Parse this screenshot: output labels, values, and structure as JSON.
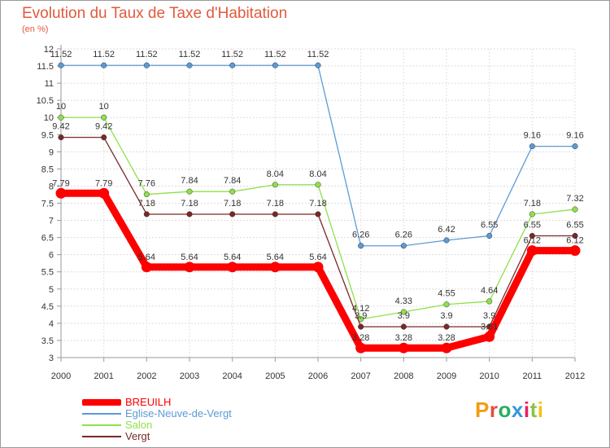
{
  "title": "Evolution du Taux de Taxe d'Habitation",
  "subtitle": "(en %)",
  "brand": {
    "text": "Proxiti",
    "colors": [
      "#f39c12",
      "#e74c3c",
      "#27ae60",
      "#3498db",
      "#e91e63",
      "#8bc34a",
      "#f1c40f"
    ]
  },
  "chart_data": {
    "type": "line",
    "title": "Evolution du Taux de Taxe d'Habitation",
    "subtitle": "(en %)",
    "x": [
      "2000",
      "2001",
      "2002",
      "2003",
      "2004",
      "2005",
      "2006",
      "2007",
      "2008",
      "2009",
      "2010",
      "2011",
      "2012"
    ],
    "ylim": [
      3,
      12
    ],
    "yticks": [
      "3",
      "3.5",
      "4",
      "4.5",
      "5",
      "5.5",
      "6",
      "6.5",
      "7",
      "7.5",
      "8",
      "8.5",
      "9",
      "9.5",
      "10",
      "10.5",
      "11",
      "11.5",
      "12"
    ],
    "grid": true,
    "legend_position": "bottom-left",
    "series": [
      {
        "name": "BREUILH",
        "color": "#ff0000",
        "values": [
          7.79,
          7.79,
          5.64,
          5.64,
          5.64,
          5.64,
          5.64,
          3.28,
          3.28,
          3.28,
          3.61,
          6.12,
          6.12
        ],
        "labels": [
          "7.79",
          "7.79",
          "5.64",
          "5.64",
          "5.64",
          "5.64",
          "5.64",
          "3.28",
          "3.28",
          "3.28",
          "3.61",
          "6.12",
          "6.12"
        ]
      },
      {
        "name": "Eglise-Neuve-de-Vergt",
        "color": "#5b9bd5",
        "values": [
          11.52,
          11.52,
          11.52,
          11.52,
          11.52,
          11.52,
          11.52,
          6.26,
          6.26,
          6.42,
          6.55,
          9.16,
          9.16
        ],
        "labels": [
          "11.52",
          "11.52",
          "11.52",
          "11.52",
          "11.52",
          "11.52",
          "11.52",
          "6.26",
          "6.26",
          "6.42",
          "6.55",
          "9.16",
          "9.16"
        ]
      },
      {
        "name": "Salon",
        "color": "#8fe04a",
        "values": [
          10,
          10,
          7.76,
          7.84,
          7.84,
          8.04,
          8.04,
          4.12,
          4.33,
          4.55,
          4.64,
          7.18,
          7.32
        ],
        "labels": [
          "10",
          "10",
          "7.76",
          "7.84",
          "7.84",
          "8.04",
          "8.04",
          "4.12",
          "4.33",
          "4.55",
          "4.64",
          "7.18",
          "7.32"
        ]
      },
      {
        "name": "Vergt",
        "color": "#7a2828",
        "values": [
          9.42,
          9.42,
          7.18,
          7.18,
          7.18,
          7.18,
          7.18,
          3.9,
          3.9,
          3.9,
          3.9,
          6.55,
          6.55
        ],
        "labels": [
          "9.42",
          "9.42",
          "7.18",
          "7.18",
          "7.18",
          "7.18",
          "7.18",
          "3.9",
          "3.9",
          "3.9",
          "3.9",
          "6.55",
          "6.55"
        ]
      }
    ]
  }
}
